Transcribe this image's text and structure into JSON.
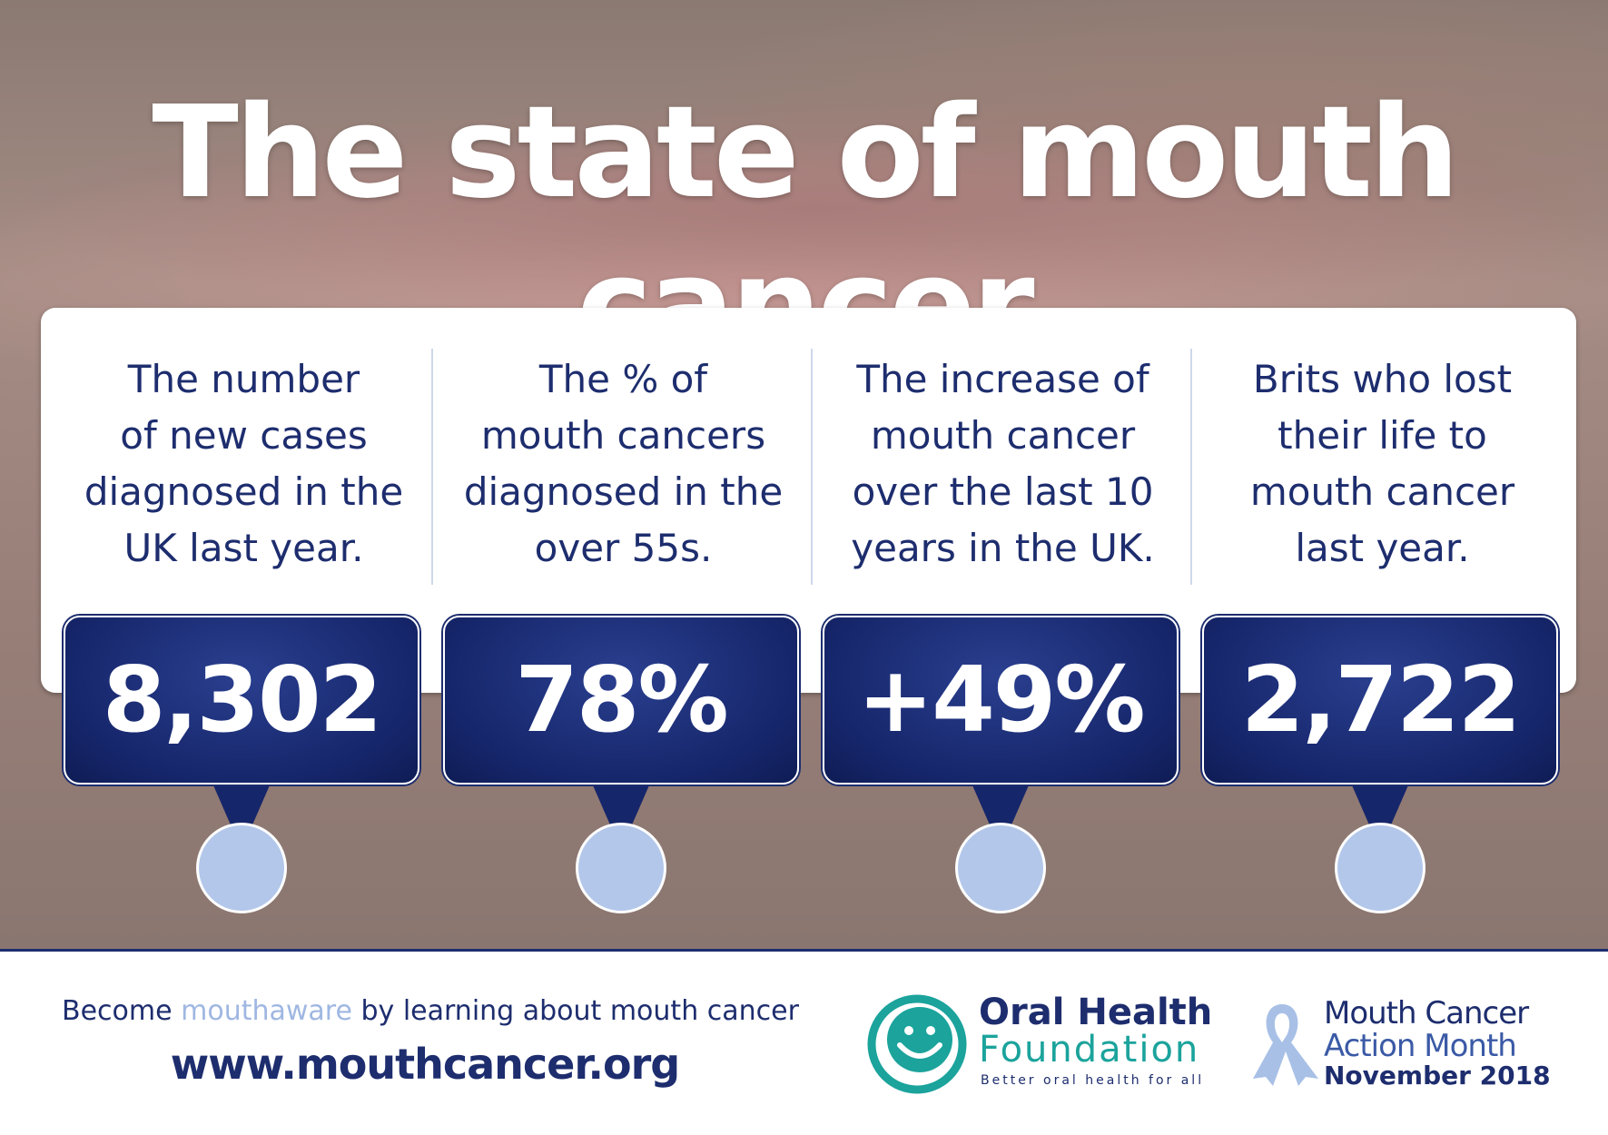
{
  "header": {
    "title": "The state of mouth cancer"
  },
  "stats": [
    {
      "description": [
        "The number",
        "of new cases",
        "diagnosed in the",
        "UK last year."
      ],
      "value": "8,302"
    },
    {
      "description": [
        "The % of",
        "mouth cancers",
        "diagnosed in the",
        "over 55s."
      ],
      "value": "78%"
    },
    {
      "description": [
        "The increase of",
        "mouth cancer",
        "over the last 10",
        "years in the UK."
      ],
      "value": "+49%"
    },
    {
      "description": [
        "Brits who lost",
        "their life to",
        "mouth cancer",
        "last year."
      ],
      "value": "2,722"
    }
  ],
  "footer": {
    "tagline_before": "Become",
    "tagline_highlight": "mouthaware",
    "tagline_after": "by learning about mouth cancer",
    "url": "www.mouthcancer.org"
  },
  "logos": {
    "ohf": {
      "line1": "Oral Health",
      "line2": "Foundation",
      "slogan": "Better oral health for all"
    },
    "mcam": {
      "line1": "Mouth Cancer",
      "line2": "Action Month",
      "line3": "November 2018"
    }
  }
}
